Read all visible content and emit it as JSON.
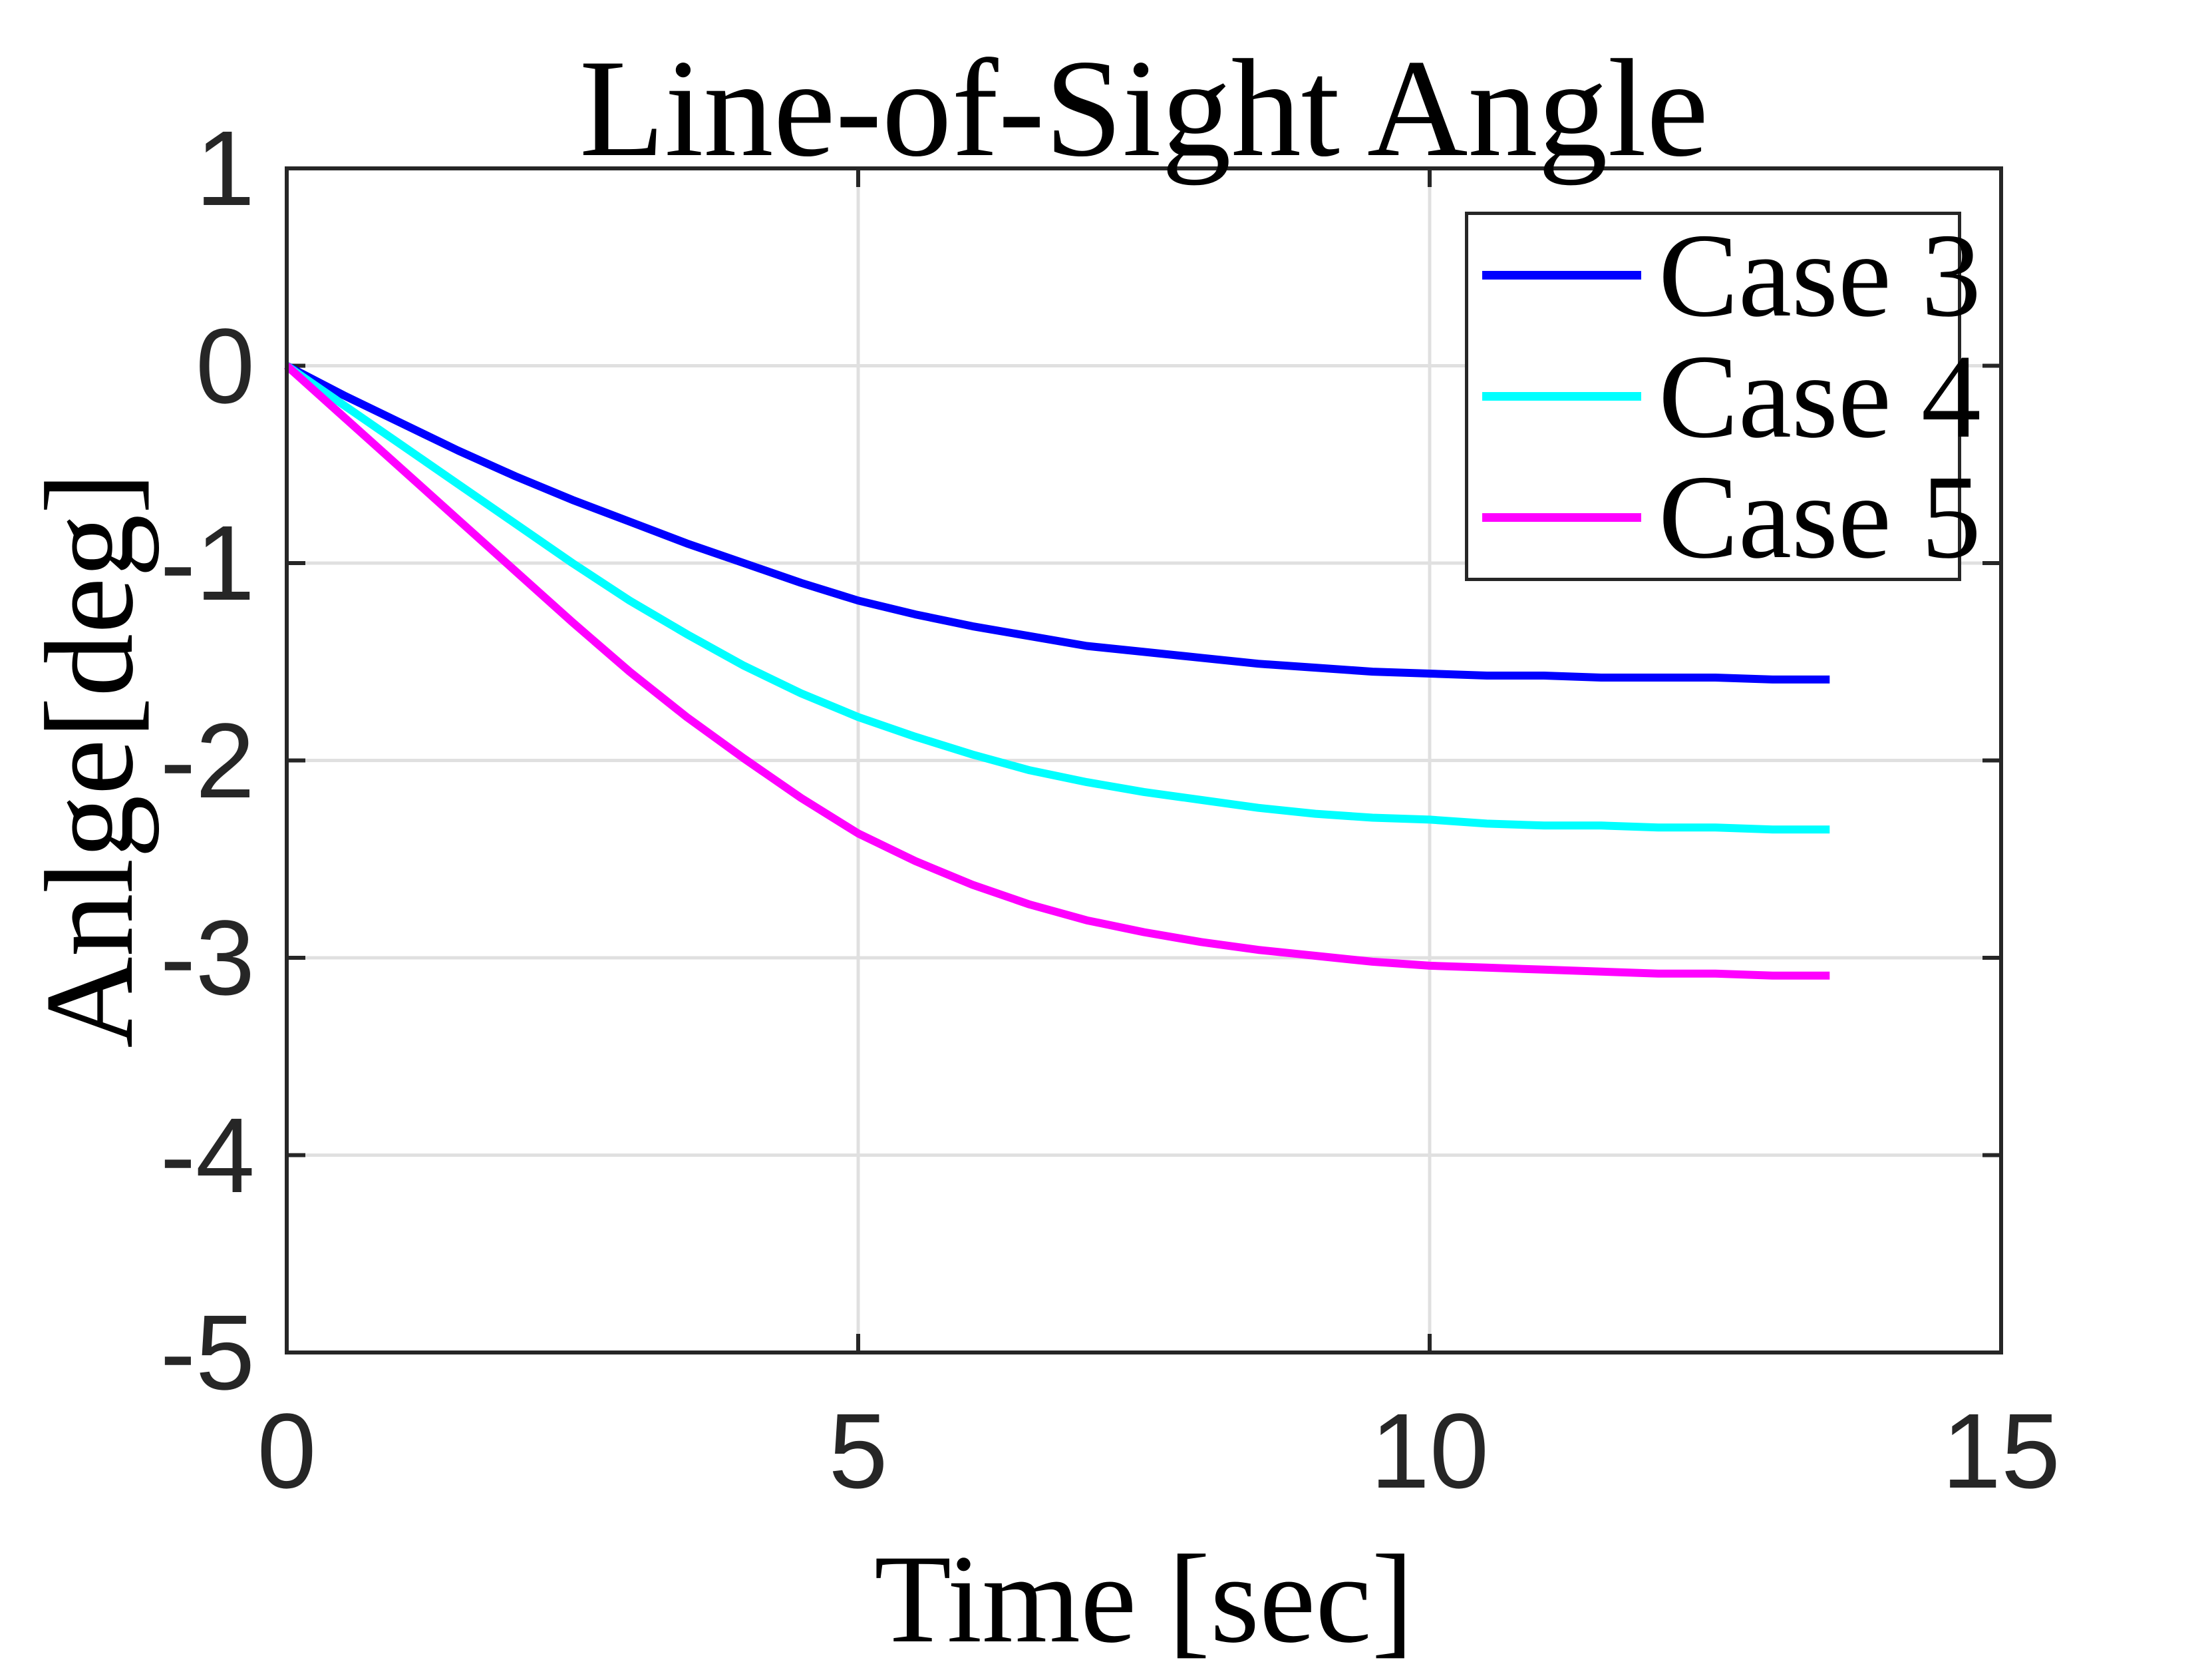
{
  "figure": {
    "title": "Line-of-Sight Angle",
    "xlabel": "Time [sec]",
    "ylabel": "Anlge[deg]"
  },
  "chart_data": {
    "type": "line",
    "title": "Line-of-Sight Angle",
    "xlabel": "Time [sec]",
    "ylabel": "Anlge[deg]",
    "xlim": [
      0,
      15
    ],
    "ylim": [
      -5,
      1
    ],
    "xticks": [
      0,
      5,
      10,
      15
    ],
    "yticks": [
      1,
      0,
      -1,
      -2,
      -3,
      -4,
      -5
    ],
    "x_gridlines": [
      5,
      10
    ],
    "y_gridlines": [
      0,
      -1,
      -2,
      -3,
      -4
    ],
    "grid": true,
    "legend_position": "top-right",
    "colors": {
      "background": "#FFFFFF",
      "axis": "#262626",
      "grid": "#E0E0E0",
      "tick_labels": "#262626",
      "text": "#000000"
    },
    "x": [
      0,
      0.5,
      1,
      1.5,
      2,
      2.5,
      3,
      3.5,
      4,
      4.5,
      5,
      5.5,
      6,
      6.5,
      7,
      7.5,
      8,
      8.5,
      9,
      9.5,
      10,
      10.5,
      11,
      11.5,
      12,
      12.5,
      13,
      13.5
    ],
    "series": [
      {
        "name": "Case 3",
        "color": "#0000FF",
        "final_value": -1.59,
        "y": [
          0,
          -0.15,
          -0.29,
          -0.43,
          -0.56,
          -0.68,
          -0.79,
          -0.9,
          -1.0,
          -1.1,
          -1.19,
          -1.26,
          -1.32,
          -1.37,
          -1.42,
          -1.45,
          -1.48,
          -1.51,
          -1.53,
          -1.55,
          -1.56,
          -1.57,
          -1.57,
          -1.58,
          -1.58,
          -1.58,
          -1.59,
          -1.59
        ]
      },
      {
        "name": "Case 4",
        "color": "#00FFFF",
        "final_value": -2.35,
        "y": [
          0,
          -0.2,
          -0.4,
          -0.6,
          -0.8,
          -1.0,
          -1.19,
          -1.36,
          -1.52,
          -1.66,
          -1.78,
          -1.88,
          -1.97,
          -2.05,
          -2.11,
          -2.16,
          -2.2,
          -2.24,
          -2.27,
          -2.29,
          -2.3,
          -2.32,
          -2.33,
          -2.33,
          -2.34,
          -2.34,
          -2.35,
          -2.35
        ]
      },
      {
        "name": "Case 5",
        "color": "#FF00FF",
        "final_value": -3.09,
        "y": [
          0,
          -0.26,
          -0.52,
          -0.78,
          -1.04,
          -1.3,
          -1.55,
          -1.78,
          -1.99,
          -2.19,
          -2.37,
          -2.51,
          -2.63,
          -2.73,
          -2.81,
          -2.87,
          -2.92,
          -2.96,
          -2.99,
          -3.02,
          -3.04,
          -3.05,
          -3.06,
          -3.07,
          -3.08,
          -3.08,
          -3.09,
          -3.09
        ]
      }
    ]
  }
}
